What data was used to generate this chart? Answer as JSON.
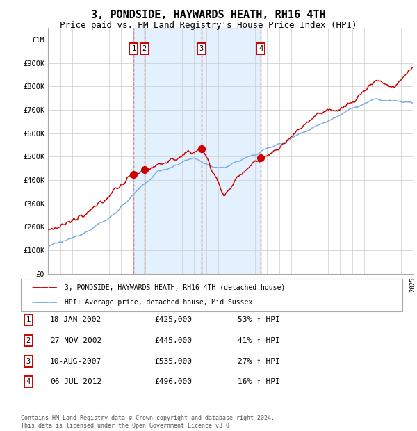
{
  "title": "3, PONDSIDE, HAYWARDS HEATH, RH16 4TH",
  "subtitle": "Price paid vs. HM Land Registry's House Price Index (HPI)",
  "title_fontsize": 11,
  "subtitle_fontsize": 9,
  "background_color": "#ffffff",
  "plot_bg_color": "#ffffff",
  "grid_color": "#cccccc",
  "red_line_color": "#cc0000",
  "blue_line_color": "#7aade0",
  "shade_color": "#ddeeff",
  "dashed_color": "#cc0000",
  "ylim": [
    0,
    1050000
  ],
  "yticks": [
    0,
    100000,
    200000,
    300000,
    400000,
    500000,
    600000,
    700000,
    800000,
    900000,
    1000000
  ],
  "ytick_labels": [
    "£0",
    "£100K",
    "£200K",
    "£300K",
    "£400K",
    "£500K",
    "£600K",
    "£700K",
    "£800K",
    "£900K",
    "£1M"
  ],
  "x_start_year": 1995,
  "x_end_year": 2025,
  "purchases": [
    {
      "label": "1",
      "date": 2002.05,
      "price": 425000
    },
    {
      "label": "2",
      "date": 2002.92,
      "price": 445000
    },
    {
      "label": "3",
      "date": 2007.61,
      "price": 535000
    },
    {
      "label": "4",
      "date": 2012.51,
      "price": 496000
    }
  ],
  "legend_entries": [
    {
      "color": "#cc0000",
      "label": "3, PONDSIDE, HAYWARDS HEATH, RH16 4TH (detached house)"
    },
    {
      "color": "#7aade0",
      "label": "HPI: Average price, detached house, Mid Sussex"
    }
  ],
  "table_rows": [
    {
      "num": "1",
      "date": "18-JAN-2002",
      "price": "£425,000",
      "hpi": "53% ↑ HPI"
    },
    {
      "num": "2",
      "date": "27-NOV-2002",
      "price": "£445,000",
      "hpi": "41% ↑ HPI"
    },
    {
      "num": "3",
      "date": "10-AUG-2007",
      "price": "£535,000",
      "hpi": "27% ↑ HPI"
    },
    {
      "num": "4",
      "date": "06-JUL-2012",
      "price": "£496,000",
      "hpi": "16% ↑ HPI"
    }
  ],
  "footer": "Contains HM Land Registry data © Crown copyright and database right 2024.\nThis data is licensed under the Open Government Licence v3.0."
}
